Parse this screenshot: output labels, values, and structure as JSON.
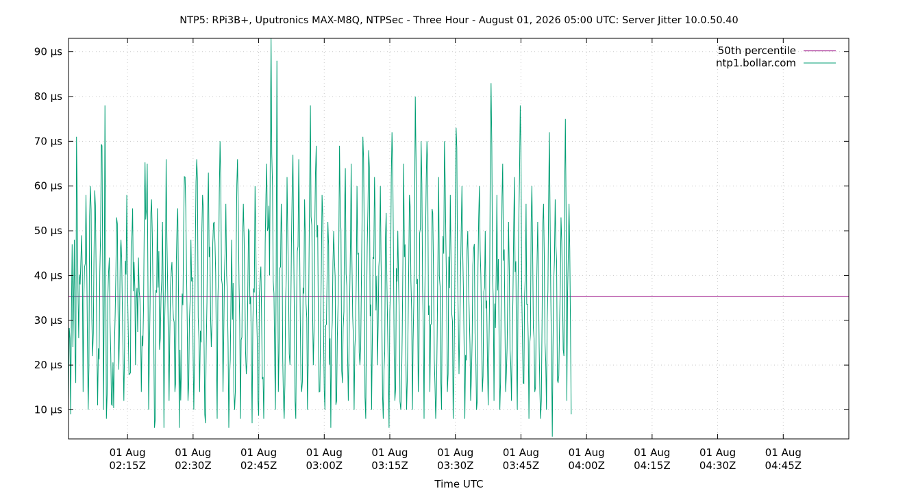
{
  "chart_data": {
    "type": "line",
    "title": "NTP5: RPi3B+, Uputronics MAX-M8Q, NTPSec - Three Hour - August 01, 2026 05:00 UTC: Server Jitter 10.0.50.40",
    "xlabel": "Time UTC",
    "ylabel": "",
    "y_unit": "µs",
    "ylim": [
      3.5,
      93
    ],
    "xlim": [
      "2026-08-01T02:01:30Z",
      "2026-08-01T05:00:00Z"
    ],
    "y_ticks": [
      10,
      20,
      30,
      40,
      50,
      60,
      70,
      80,
      90
    ],
    "y_tick_labels": [
      "10 µs",
      "20 µs",
      "30 µs",
      "40 µs",
      "50 µs",
      "60 µs",
      "70 µs",
      "80 µs",
      "90 µs"
    ],
    "x_ticks": [
      "2026-08-01T02:15:00Z",
      "2026-08-01T02:30:00Z",
      "2026-08-01T02:45:00Z",
      "2026-08-01T03:00:00Z",
      "2026-08-01T03:15:00Z",
      "2026-08-01T03:30:00Z",
      "2026-08-01T03:45:00Z",
      "2026-08-01T04:00:00Z",
      "2026-08-01T04:15:00Z",
      "2026-08-01T04:30:00Z",
      "2026-08-01T04:45:00Z"
    ],
    "x_tick_labels": [
      [
        "01 Aug",
        "02:15Z"
      ],
      [
        "01 Aug",
        "02:30Z"
      ],
      [
        "01 Aug",
        "02:45Z"
      ],
      [
        "01 Aug",
        "03:00Z"
      ],
      [
        "01 Aug",
        "03:15Z"
      ],
      [
        "01 Aug",
        "03:30Z"
      ],
      [
        "01 Aug",
        "03:45Z"
      ],
      [
        "01 Aug",
        "04:00Z"
      ],
      [
        "01 Aug",
        "04:15Z"
      ],
      [
        "01 Aug",
        "04:30Z"
      ],
      [
        "01 Aug",
        "04:45Z"
      ]
    ],
    "grid": true,
    "legend_position": "top-right",
    "series": [
      {
        "name": "50th percentile",
        "color": "#94007f",
        "style": "constant",
        "value": 35.3
      },
      {
        "name": "ntp1.bollar.com",
        "color": "#009e73",
        "style": "line",
        "x_start": "2026-08-01T02:01:30Z",
        "interval_seconds": 10,
        "anchors": [
          [
            0,
            12
          ],
          [
            2,
            26
          ],
          [
            3,
            9
          ],
          [
            4,
            33
          ],
          [
            5,
            47
          ],
          [
            6,
            24
          ],
          [
            8,
            48
          ],
          [
            10,
            16
          ],
          [
            11,
            71
          ],
          [
            14,
            26
          ],
          [
            16,
            38
          ],
          [
            18,
            49
          ],
          [
            20,
            14
          ],
          [
            24,
            58
          ],
          [
            27,
            10
          ],
          [
            30,
            60
          ],
          [
            33,
            22
          ],
          [
            36,
            59
          ],
          [
            40,
            11
          ],
          [
            44,
            49
          ],
          [
            46,
            69
          ],
          [
            48,
            10
          ],
          [
            50,
            78
          ],
          [
            52,
            8
          ],
          [
            56,
            44
          ],
          [
            60,
            11
          ],
          [
            63,
            24
          ],
          [
            66,
            53
          ],
          [
            69,
            19
          ],
          [
            72,
            48
          ],
          [
            76,
            12
          ],
          [
            80,
            58
          ],
          [
            84,
            18
          ],
          [
            88,
            55
          ],
          [
            92,
            20
          ],
          [
            96,
            44
          ],
          [
            100,
            14
          ],
          [
            104,
            52
          ],
          [
            108,
            65
          ],
          [
            110,
            10
          ],
          [
            114,
            57
          ],
          [
            118,
            6
          ],
          [
            122,
            55
          ],
          [
            126,
            26
          ],
          [
            129,
            52
          ],
          [
            131,
            6
          ],
          [
            134,
            66
          ],
          [
            138,
            12
          ],
          [
            142,
            43
          ],
          [
            146,
            14
          ],
          [
            150,
            55
          ],
          [
            152,
            6
          ],
          [
            156,
            36
          ],
          [
            160,
            62
          ],
          [
            164,
            12
          ],
          [
            168,
            48
          ],
          [
            172,
            10
          ],
          [
            176,
            66
          ],
          [
            180,
            14
          ],
          [
            184,
            58
          ],
          [
            188,
            7
          ],
          [
            192,
            63
          ],
          [
            196,
            24
          ],
          [
            200,
            52
          ],
          [
            204,
            8
          ],
          [
            208,
            70
          ],
          [
            212,
            14
          ],
          [
            216,
            56
          ],
          [
            220,
            6
          ],
          [
            224,
            48
          ],
          [
            228,
            10
          ],
          [
            232,
            66
          ],
          [
            236,
            8
          ],
          [
            240,
            56
          ],
          [
            244,
            18
          ],
          [
            248,
            50
          ],
          [
            252,
            7
          ],
          [
            256,
            60
          ],
          [
            260,
            12
          ],
          [
            264,
            42
          ],
          [
            268,
            8
          ],
          [
            272,
            65
          ],
          [
            276,
            40
          ],
          [
            278,
            93
          ],
          [
            280,
            60
          ],
          [
            282,
            36
          ],
          [
            284,
            10
          ],
          [
            286,
            88
          ],
          [
            288,
            14
          ],
          [
            292,
            56
          ],
          [
            296,
            8
          ],
          [
            300,
            62
          ],
          [
            304,
            20
          ],
          [
            308,
            67
          ],
          [
            312,
            8
          ],
          [
            316,
            66
          ],
          [
            320,
            14
          ],
          [
            324,
            57
          ],
          [
            328,
            10
          ],
          [
            332,
            78
          ],
          [
            336,
            20
          ],
          [
            340,
            69
          ],
          [
            344,
            14
          ],
          [
            348,
            58
          ],
          [
            352,
            10
          ],
          [
            356,
            52
          ],
          [
            360,
            6
          ],
          [
            364,
            50
          ],
          [
            368,
            12
          ],
          [
            372,
            69
          ],
          [
            376,
            16
          ],
          [
            380,
            64
          ],
          [
            384,
            12
          ],
          [
            388,
            65
          ],
          [
            392,
            10
          ],
          [
            396,
            60
          ],
          [
            400,
            20
          ],
          [
            404,
            71
          ],
          [
            408,
            8
          ],
          [
            412,
            68
          ],
          [
            416,
            10
          ],
          [
            420,
            62
          ],
          [
            424,
            20
          ],
          [
            428,
            60
          ],
          [
            432,
            8
          ],
          [
            436,
            54
          ],
          [
            440,
            6
          ],
          [
            444,
            72
          ],
          [
            448,
            12
          ],
          [
            452,
            50
          ],
          [
            456,
            10
          ],
          [
            460,
            65
          ],
          [
            464,
            10
          ],
          [
            468,
            58
          ],
          [
            472,
            10
          ],
          [
            476,
            80
          ],
          [
            480,
            14
          ],
          [
            484,
            70
          ],
          [
            488,
            8
          ],
          [
            492,
            70
          ],
          [
            496,
            14
          ],
          [
            500,
            54
          ],
          [
            504,
            8
          ],
          [
            508,
            62
          ],
          [
            512,
            10
          ],
          [
            516,
            70
          ],
          [
            520,
            14
          ],
          [
            524,
            58
          ],
          [
            528,
            8
          ],
          [
            532,
            73
          ],
          [
            536,
            18
          ],
          [
            540,
            60
          ],
          [
            544,
            8
          ],
          [
            548,
            50
          ],
          [
            552,
            12
          ],
          [
            556,
            46
          ],
          [
            560,
            10
          ],
          [
            564,
            60
          ],
          [
            568,
            14
          ],
          [
            572,
            50
          ],
          [
            576,
            11
          ],
          [
            580,
            83
          ],
          [
            584,
            12
          ],
          [
            588,
            58
          ],
          [
            592,
            10
          ],
          [
            596,
            65
          ],
          [
            600,
            14
          ],
          [
            604,
            52
          ],
          [
            608,
            12
          ],
          [
            612,
            62
          ],
          [
            616,
            10
          ],
          [
            620,
            78
          ],
          [
            624,
            16
          ],
          [
            628,
            56
          ],
          [
            632,
            8
          ],
          [
            636,
            60
          ],
          [
            640,
            14
          ],
          [
            644,
            52
          ],
          [
            648,
            8
          ],
          [
            652,
            56
          ],
          [
            656,
            10
          ],
          [
            660,
            72
          ],
          [
            664,
            4
          ],
          [
            668,
            57
          ],
          [
            672,
            16
          ],
          [
            676,
            53
          ],
          [
            680,
            22
          ],
          [
            682,
            75
          ],
          [
            684,
            12
          ],
          [
            686,
            45
          ],
          [
            688,
            46
          ],
          [
            690,
            9
          ]
        ]
      }
    ]
  }
}
